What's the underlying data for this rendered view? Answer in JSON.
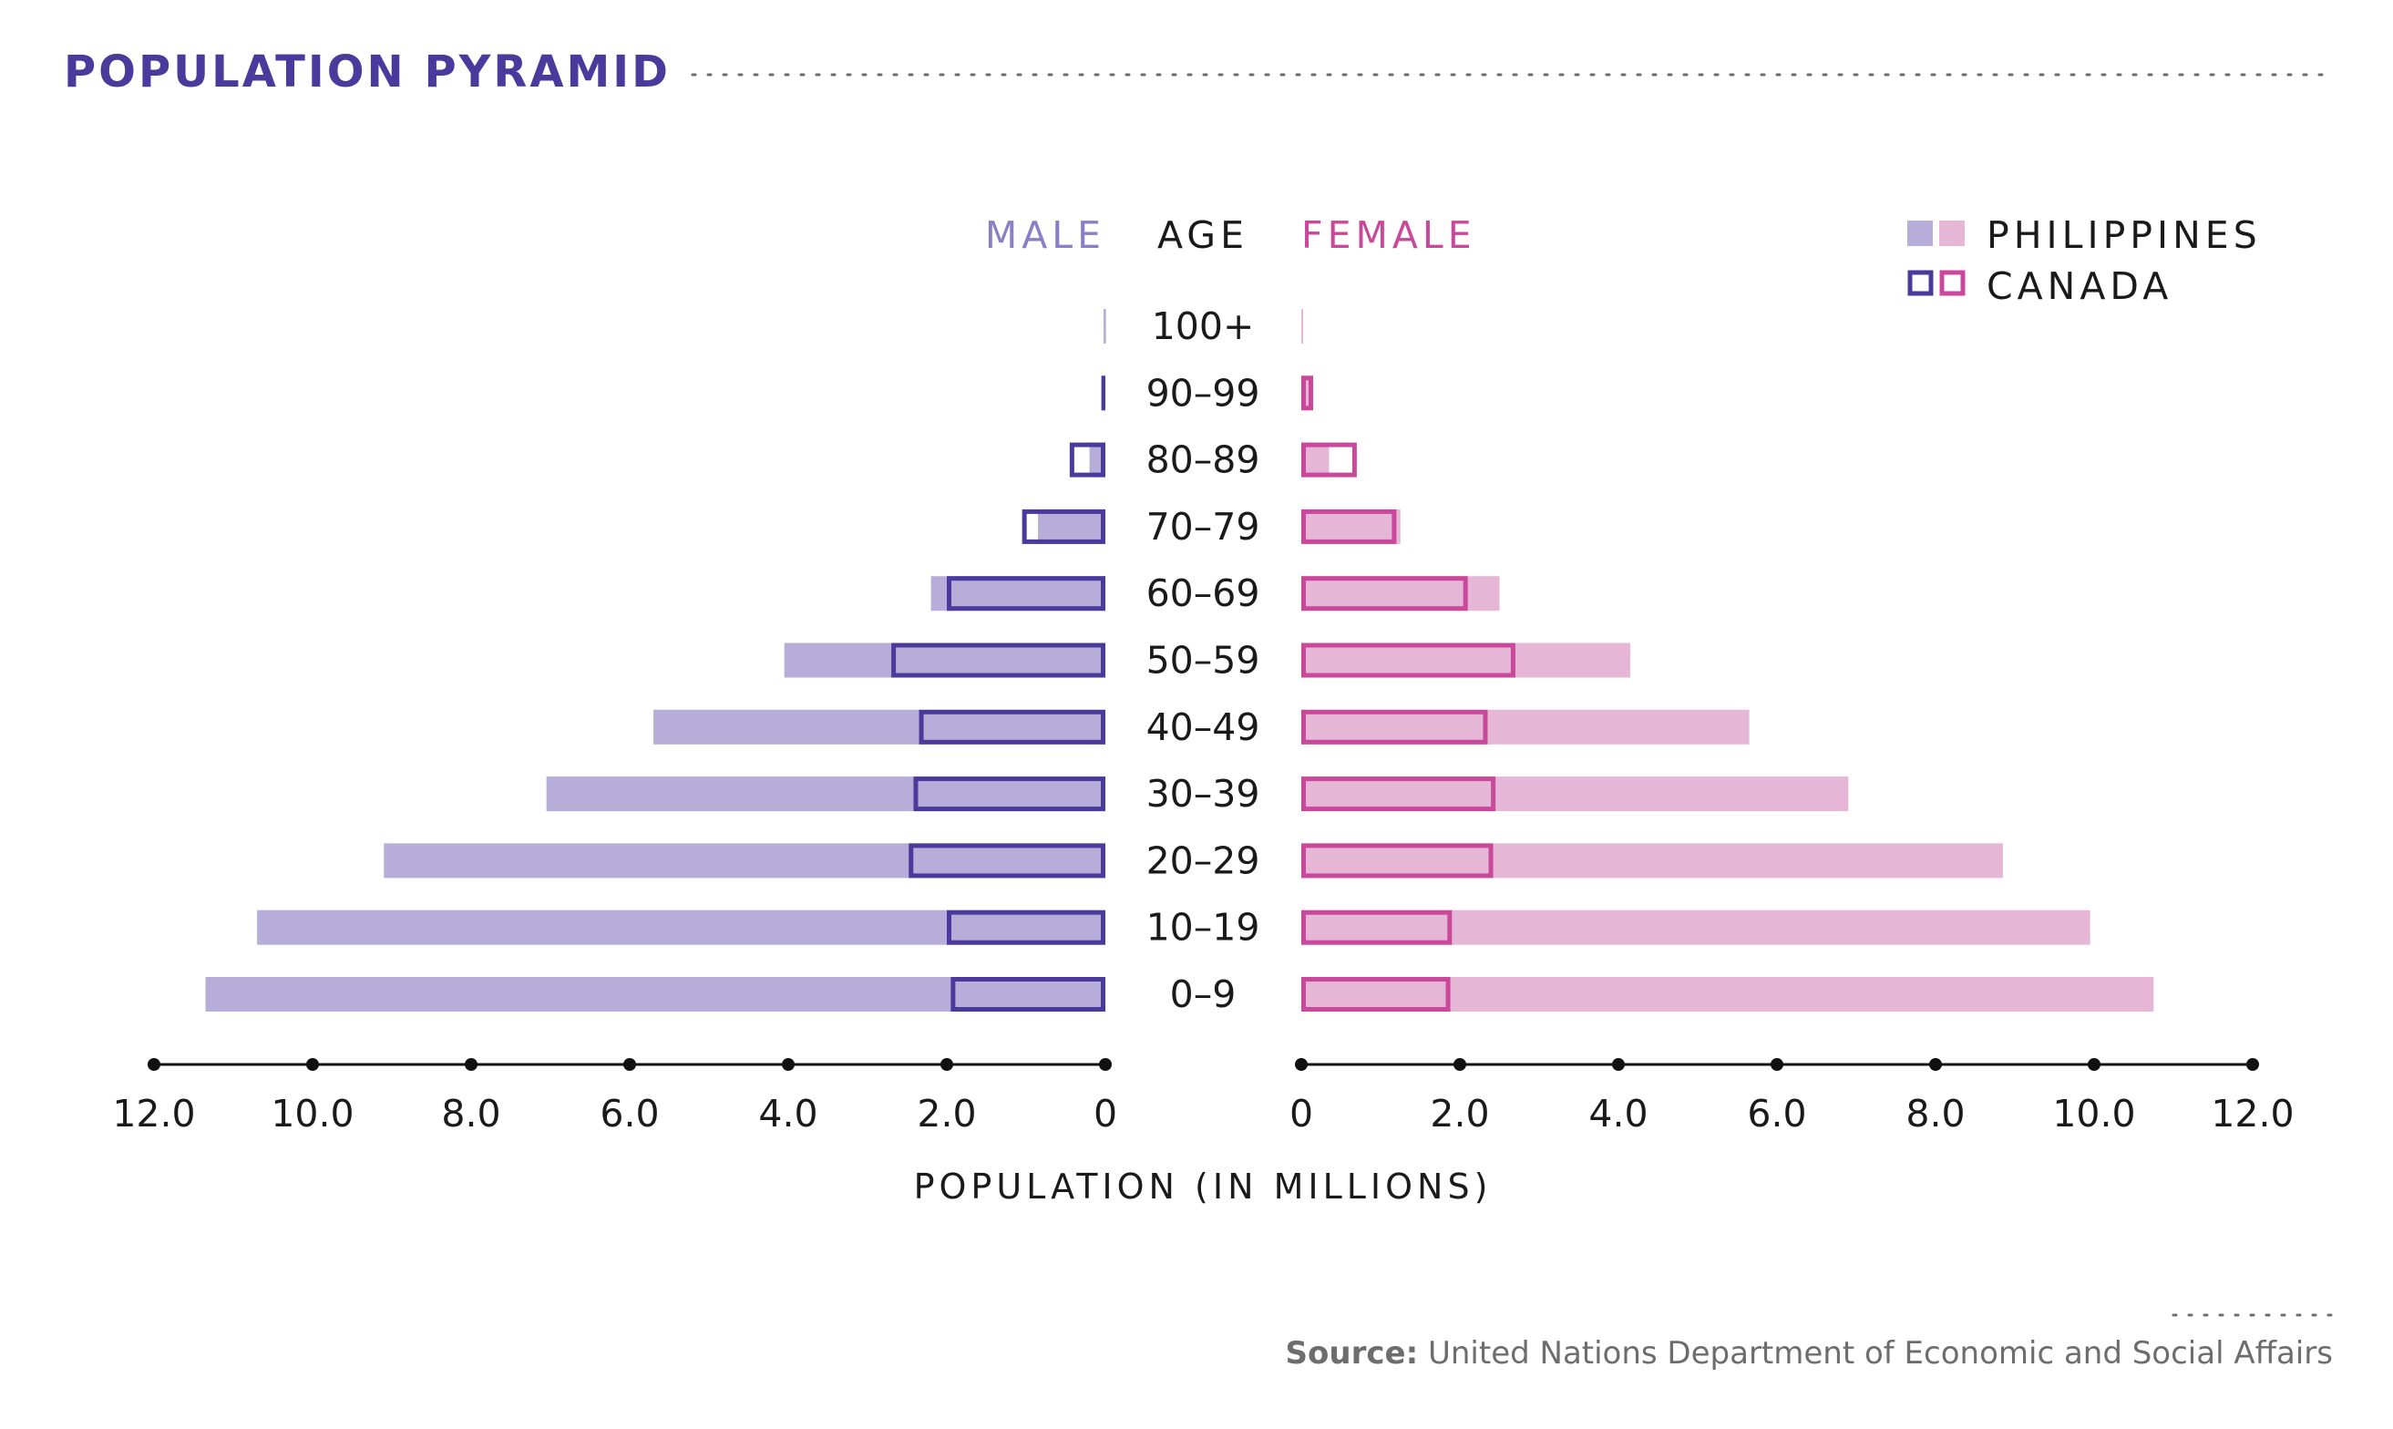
{
  "title": "POPULATION PYRAMID",
  "colors": {
    "title": "#4a3a9c",
    "male_fill": "#b6aed8",
    "male_outline": "#4a3a9c",
    "female_fill": "#e6b6d6",
    "female_outline": "#c9489b",
    "dots": "#6d6d6d",
    "axis": "#111111"
  },
  "headers": {
    "male": "MALE",
    "age": "AGE",
    "female": "FEMALE"
  },
  "legend": {
    "philippines": "PHILIPPINES",
    "canada": "CANADA"
  },
  "source": {
    "label": "Source:",
    "text": "United Nations Department of Economic and Social Affairs"
  },
  "chart_data": {
    "type": "bar",
    "orientation": "horizontal",
    "style": "population pyramid (back-to-back)",
    "categories": [
      "100+",
      "90–99",
      "80–89",
      "70–79",
      "60–69",
      "50–59",
      "40–49",
      "30–39",
      "20–29",
      "10–19",
      "0–9"
    ],
    "series": [
      {
        "name": "PHILIPPINES",
        "side": "MALE",
        "style": "filled",
        "values": [
          0.01,
          0.05,
          0.2,
          0.85,
          2.2,
          4.05,
          5.7,
          7.05,
          9.1,
          10.7,
          11.35
        ]
      },
      {
        "name": "CANADA",
        "side": "MALE",
        "style": "outline",
        "values": [
          0.01,
          0.05,
          0.45,
          1.05,
          2.0,
          2.7,
          2.35,
          2.42,
          2.48,
          2.0,
          1.95
        ]
      },
      {
        "name": "PHILIPPINES",
        "side": "FEMALE",
        "style": "filled",
        "values": [
          0.02,
          0.1,
          0.35,
          1.25,
          2.5,
          4.15,
          5.65,
          6.9,
          8.85,
          9.95,
          10.75
        ]
      },
      {
        "name": "CANADA",
        "side": "FEMALE",
        "style": "outline",
        "values": [
          0.01,
          0.15,
          0.7,
          1.2,
          2.1,
          2.7,
          2.35,
          2.45,
          2.42,
          1.9,
          1.88
        ]
      }
    ],
    "xlabel": "POPULATION (IN MILLIONS)",
    "ylabel": "AGE",
    "xlim": [
      0,
      12
    ],
    "xticks_left": [
      "12.0",
      "10.0",
      "8.0",
      "6.0",
      "4.0",
      "2.0",
      "0"
    ],
    "xticks_right": [
      "0",
      "2.0",
      "4.0",
      "6.0",
      "8.0",
      "10.0",
      "12.0"
    ],
    "legend_position": "top-right",
    "grid": false
  }
}
